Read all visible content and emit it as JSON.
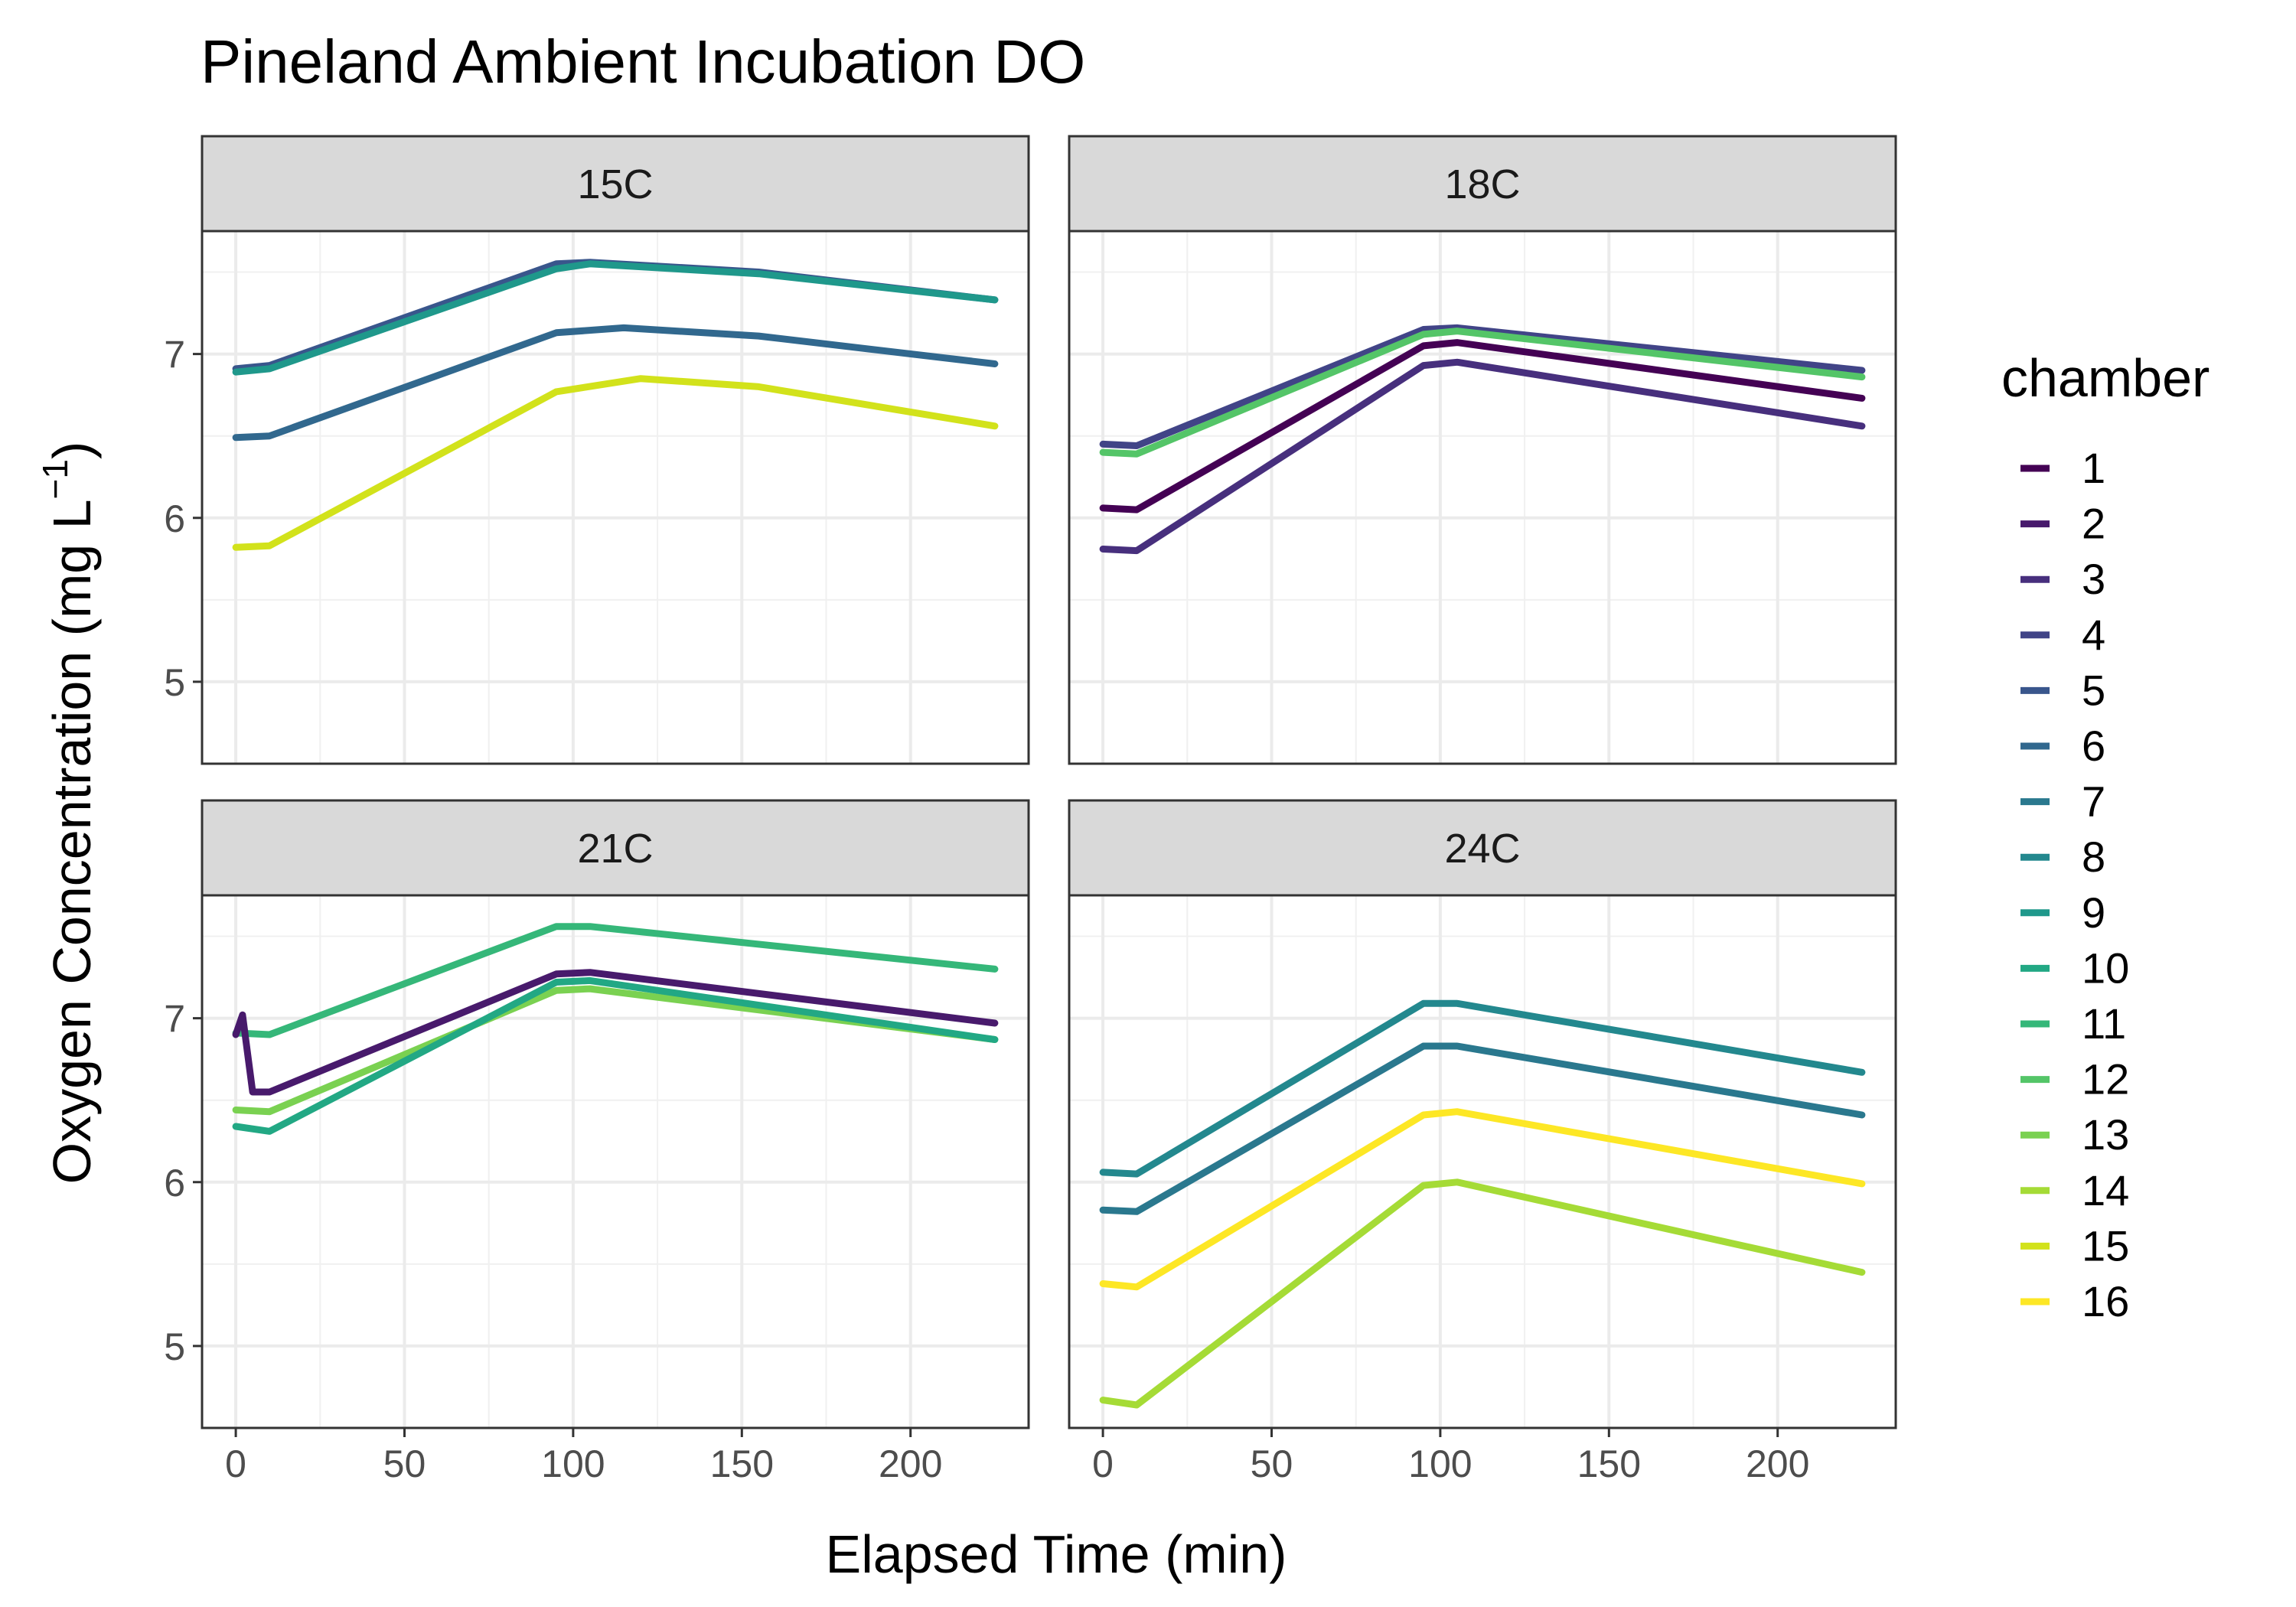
{
  "chart_data": {
    "type": "line",
    "title": "Pineland Ambient Incubation DO",
    "xlabel": "Elapsed Time (min)",
    "ylabel_main": "Oxygen Concentration (mg L",
    "ylabel_sup": "−1",
    "ylabel_close": ")",
    "xlim": [
      -10,
      235
    ],
    "ylim": [
      4.5,
      7.75
    ],
    "x_ticks": [
      0,
      50,
      100,
      150,
      200
    ],
    "y_ticks": [
      5,
      6,
      7
    ],
    "grid": true,
    "legend": {
      "title": "chamber",
      "position": "right",
      "items": [
        {
          "label": "1",
          "color": "#440154"
        },
        {
          "label": "2",
          "color": "#481A6C"
        },
        {
          "label": "3",
          "color": "#472F7D"
        },
        {
          "label": "4",
          "color": "#414487"
        },
        {
          "label": "5",
          "color": "#39568C"
        },
        {
          "label": "6",
          "color": "#31688E"
        },
        {
          "label": "7",
          "color": "#2A788E"
        },
        {
          "label": "8",
          "color": "#23888E"
        },
        {
          "label": "9",
          "color": "#1F988B"
        },
        {
          "label": "10",
          "color": "#22A884"
        },
        {
          "label": "11",
          "color": "#35B779"
        },
        {
          "label": "12",
          "color": "#54C568"
        },
        {
          "label": "13",
          "color": "#7AD151"
        },
        {
          "label": "14",
          "color": "#A5DB36"
        },
        {
          "label": "15",
          "color": "#D2E21B"
        },
        {
          "label": "16",
          "color": "#FDE725"
        }
      ]
    },
    "panels": [
      {
        "label": "15C",
        "series": [
          {
            "name": "5",
            "color": "#39568C",
            "points": [
              [
                0,
                6.91
              ],
              [
                10,
                6.93
              ],
              [
                95,
                7.55
              ],
              [
                105,
                7.56
              ],
              [
                155,
                7.5
              ],
              [
                225,
                7.33
              ]
            ]
          },
          {
            "name": "9",
            "color": "#1F988B",
            "points": [
              [
                0,
                6.89
              ],
              [
                10,
                6.91
              ],
              [
                95,
                7.52
              ],
              [
                105,
                7.55
              ],
              [
                155,
                7.49
              ],
              [
                225,
                7.33
              ]
            ]
          },
          {
            "name": "6",
            "color": "#31688E",
            "points": [
              [
                0,
                6.49
              ],
              [
                10,
                6.5
              ],
              [
                95,
                7.13
              ],
              [
                115,
                7.16
              ],
              [
                155,
                7.11
              ],
              [
                225,
                6.94
              ]
            ]
          },
          {
            "name": "15",
            "color": "#D2E21B",
            "points": [
              [
                0,
                5.82
              ],
              [
                10,
                5.83
              ],
              [
                95,
                6.77
              ],
              [
                120,
                6.85
              ],
              [
                155,
                6.8
              ],
              [
                225,
                6.56
              ]
            ]
          }
        ]
      },
      {
        "label": "18C",
        "series": [
          {
            "name": "4",
            "color": "#414487",
            "points": [
              [
                0,
                6.45
              ],
              [
                10,
                6.44
              ],
              [
                95,
                7.15
              ],
              [
                105,
                7.16
              ],
              [
                225,
                6.9
              ]
            ]
          },
          {
            "name": "12",
            "color": "#54C568",
            "points": [
              [
                0,
                6.4
              ],
              [
                10,
                6.39
              ],
              [
                95,
                7.12
              ],
              [
                105,
                7.14
              ],
              [
                225,
                6.86
              ]
            ]
          },
          {
            "name": "1",
            "color": "#440154",
            "points": [
              [
                0,
                6.06
              ],
              [
                10,
                6.05
              ],
              [
                95,
                7.05
              ],
              [
                105,
                7.07
              ],
              [
                225,
                6.73
              ]
            ]
          },
          {
            "name": "3",
            "color": "#472F7D",
            "points": [
              [
                0,
                5.81
              ],
              [
                10,
                5.8
              ],
              [
                95,
                6.93
              ],
              [
                105,
                6.95
              ],
              [
                225,
                6.56
              ]
            ]
          }
        ]
      },
      {
        "label": "21C",
        "series": [
          {
            "name": "11",
            "color": "#35B779",
            "points": [
              [
                0,
                6.91
              ],
              [
                10,
                6.9
              ],
              [
                95,
                7.56
              ],
              [
                105,
                7.56
              ],
              [
                225,
                7.3
              ]
            ]
          },
          {
            "name": "2",
            "color": "#481A6C",
            "points": [
              [
                0,
                6.9
              ],
              [
                2,
                7.02
              ],
              [
                5,
                6.55
              ],
              [
                10,
                6.55
              ],
              [
                95,
                7.27
              ],
              [
                105,
                7.28
              ],
              [
                225,
                6.97
              ]
            ]
          },
          {
            "name": "13",
            "color": "#7AD151",
            "points": [
              [
                0,
                6.44
              ],
              [
                10,
                6.43
              ],
              [
                95,
                7.17
              ],
              [
                105,
                7.18
              ],
              [
                225,
                6.87
              ]
            ]
          },
          {
            "name": "10",
            "color": "#22A884",
            "points": [
              [
                0,
                6.34
              ],
              [
                10,
                6.31
              ],
              [
                95,
                7.22
              ],
              [
                105,
                7.23
              ],
              [
                225,
                6.87
              ]
            ]
          }
        ]
      },
      {
        "label": "24C",
        "series": [
          {
            "name": "8",
            "color": "#23888E",
            "points": [
              [
                0,
                6.06
              ],
              [
                10,
                6.05
              ],
              [
                95,
                7.09
              ],
              [
                105,
                7.09
              ],
              [
                225,
                6.67
              ]
            ]
          },
          {
            "name": "7",
            "color": "#2A788E",
            "points": [
              [
                0,
                5.83
              ],
              [
                10,
                5.82
              ],
              [
                95,
                6.83
              ],
              [
                105,
                6.83
              ],
              [
                225,
                6.41
              ]
            ]
          },
          {
            "name": "16",
            "color": "#FDE725",
            "points": [
              [
                0,
                5.38
              ],
              [
                10,
                5.36
              ],
              [
                95,
                6.41
              ],
              [
                105,
                6.43
              ],
              [
                225,
                5.99
              ]
            ]
          },
          {
            "name": "14",
            "color": "#A5DB36",
            "points": [
              [
                0,
                4.67
              ],
              [
                10,
                4.64
              ],
              [
                95,
                5.98
              ],
              [
                105,
                6.0
              ],
              [
                225,
                5.45
              ]
            ]
          }
        ]
      }
    ]
  }
}
